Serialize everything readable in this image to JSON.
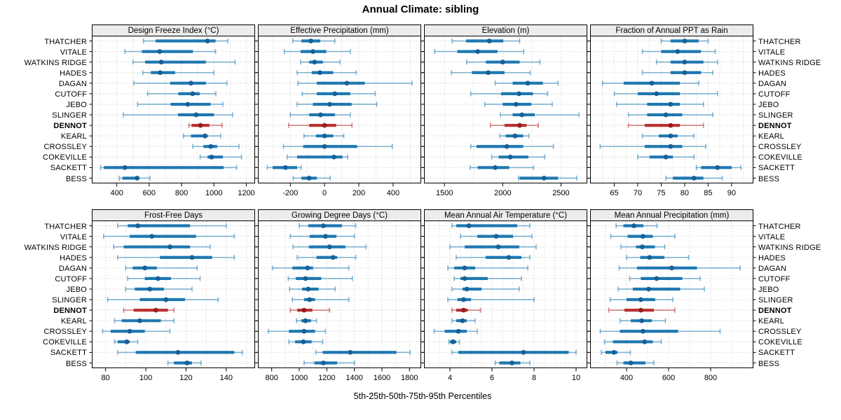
{
  "title": "Annual Climate: sibling",
  "footer": "5th-25th-50th-75th-95th Percentiles",
  "colors": {
    "normal_bar": "#1e78b0",
    "normal_dot": "#176099",
    "normal_whisker": "rgba(30,120,176,0.55)",
    "highlight_bar": "#b83232",
    "highlight_dot": "#961e1e",
    "highlight_whisker": "rgba(184,50,50,0.6)",
    "strip_bg": "#ececec",
    "grid": "#c8c8c8",
    "border": "#000000"
  },
  "chart_data": {
    "type": "dotplot-percentiles",
    "layout": "2 rows x 4 cols",
    "percentiles": [
      5,
      25,
      50,
      75,
      95
    ],
    "legend_note": "5th-25th-50th-75th-95th Percentiles",
    "highlight_station": "DENNOT",
    "stations": [
      "THATCHER",
      "VITALE",
      "WATKINS RIDGE",
      "HADES",
      "DAGAN",
      "CUTOFF",
      "JEBO",
      "SLINGER",
      "DENNOT",
      "KEARL",
      "CROSSLEY",
      "COKEVILLE",
      "SACKETT",
      "BESS"
    ],
    "panels": [
      {
        "title": "Design Freeze Index (°C)",
        "xlim": [
          250,
          1250
        ],
        "ticks": [
          400,
          600,
          800,
          1000,
          1200
        ],
        "grid_start": 300,
        "grid_step": 100,
        "values": {
          "THATCHER": [
            565,
            640,
            960,
            1010,
            1085
          ],
          "VITALE": [
            450,
            555,
            665,
            870,
            1010
          ],
          "WATKINS RIDGE": [
            500,
            575,
            675,
            950,
            1130
          ],
          "HADES": [
            560,
            610,
            668,
            760,
            1000
          ],
          "DAGAN": [
            505,
            730,
            858,
            950,
            1080
          ],
          "CUTOFF": [
            590,
            780,
            868,
            912,
            1012
          ],
          "JEBO": [
            528,
            732,
            838,
            980,
            1055
          ],
          "SLINGER": [
            440,
            778,
            890,
            1000,
            1115
          ],
          "DENNOT": [
            845,
            862,
            917,
            972,
            1050
          ],
          "KEARL": [
            812,
            858,
            945,
            962,
            1042
          ],
          "CROSSLEY": [
            870,
            935,
            980,
            1020,
            1155
          ],
          "COKEVILLE": [
            915,
            960,
            985,
            1055,
            1170
          ],
          "SACKETT": [
            300,
            320,
            450,
            1060,
            1140
          ],
          "BESS": [
            415,
            435,
            525,
            540,
            605
          ]
        }
      },
      {
        "title": "Effective Precipitation (mm)",
        "xlim": [
          -385,
          560
        ],
        "ticks": [
          -200,
          0,
          200,
          400
        ],
        "grid_start": -300,
        "grid_step": 100,
        "values": {
          "THATCHER": [
            -185,
            -135,
            -80,
            -25,
            60
          ],
          "VITALE": [
            -235,
            -140,
            -68,
            10,
            150
          ],
          "WATKINS RIDGE": [
            -140,
            -90,
            -58,
            -10,
            90
          ],
          "HADES": [
            -160,
            -75,
            -27,
            50,
            185
          ],
          "DAGAN": [
            -155,
            -45,
            130,
            235,
            510
          ],
          "CUTOFF": [
            -130,
            -45,
            60,
            150,
            295
          ],
          "JEBO": [
            -160,
            -68,
            30,
            158,
            305
          ],
          "SLINGER": [
            -200,
            -90,
            -23,
            60,
            150
          ],
          "DENNOT": [
            -210,
            -90,
            0,
            68,
            160
          ],
          "KEARL": [
            -120,
            -50,
            0,
            50,
            112
          ],
          "CROSSLEY": [
            -240,
            -125,
            0,
            190,
            395
          ],
          "COKEVILLE": [
            -218,
            -160,
            55,
            105,
            135
          ],
          "SACKETT": [
            -335,
            -303,
            -228,
            -160,
            -137
          ],
          "BESS": [
            -183,
            -135,
            -90,
            -45,
            33
          ]
        }
      },
      {
        "title": "Elevation (m)",
        "xlim": [
          1330,
          2720
        ],
        "ticks": [
          1500,
          2000,
          2500
        ],
        "grid_start": 1500,
        "grid_step": 250,
        "values": {
          "THATCHER": [
            1565,
            1685,
            1885,
            2005,
            2145
          ],
          "VITALE": [
            1415,
            1610,
            1785,
            1955,
            2180
          ],
          "WATKINS RIDGE": [
            1690,
            1855,
            2000,
            2145,
            2320
          ],
          "HADES": [
            1560,
            1735,
            1875,
            2015,
            2235
          ],
          "DAGAN": [
            1935,
            2085,
            2215,
            2345,
            2475
          ],
          "CUTOFF": [
            1725,
            1985,
            2140,
            2260,
            2385
          ],
          "JEBO": [
            1845,
            2000,
            2115,
            2245,
            2425
          ],
          "SLINGER": [
            1980,
            2085,
            2165,
            2275,
            2655
          ],
          "DENNOT": [
            1895,
            2015,
            2145,
            2205,
            2305
          ],
          "KEARL": [
            1975,
            2025,
            2105,
            2175,
            2225
          ],
          "CROSSLEY": [
            1725,
            1775,
            2035,
            2175,
            2435
          ],
          "COKEVILLE": [
            1905,
            1965,
            2065,
            2220,
            2360
          ],
          "SACKETT": [
            1720,
            1785,
            1935,
            2055,
            2265
          ],
          "BESS": [
            2135,
            2145,
            2355,
            2475,
            2635
          ]
        }
      },
      {
        "title": "Fraction of Annual PPT as Rain",
        "xlim": [
          60,
          94.5
        ],
        "ticks": [
          65,
          70,
          75,
          80,
          85,
          90
        ],
        "grid_start": 62.5,
        "grid_step": 2.5,
        "values": {
          "THATCHER": [
            75,
            77,
            80,
            83,
            85
          ],
          "VITALE": [
            71,
            75,
            78.5,
            83.5,
            86.5
          ],
          "WATKINS RIDGE": [
            74,
            77,
            80,
            84,
            87
          ],
          "HADES": [
            71,
            77,
            80,
            83.5,
            86
          ],
          "DAGAN": [
            62.5,
            67,
            73,
            79,
            83
          ],
          "CUTOFF": [
            65,
            70,
            74,
            79,
            87
          ],
          "JEBO": [
            65.5,
            72,
            77,
            79,
            84
          ],
          "SLINGER": [
            68,
            72,
            76,
            79.5,
            86
          ],
          "DENNOT": [
            68,
            71.5,
            77,
            79,
            84
          ],
          "KEARL": [
            71,
            74.5,
            77,
            78.5,
            82
          ],
          "CROSSLEY": [
            62,
            71.5,
            77,
            79.5,
            84.5
          ],
          "COKEVILLE": [
            70,
            72.5,
            76,
            77.5,
            82
          ],
          "SACKETT": [
            82.5,
            83.5,
            87,
            90,
            92
          ],
          "BESS": [
            76,
            77.5,
            82,
            84,
            88
          ]
        }
      },
      {
        "title": "Frost-Free Days",
        "xlim": [
          73.5,
          154
        ],
        "ticks": [
          80,
          100,
          120,
          140
        ],
        "grid_start": 80,
        "grid_step": 10,
        "values": {
          "THATCHER": [
            86,
            91,
            96,
            122,
            140
          ],
          "VITALE": [
            79,
            92,
            103,
            125,
            144
          ],
          "WATKINS RIDGE": [
            84,
            89,
            112,
            122,
            132
          ],
          "HADES": [
            86,
            107,
            123,
            133,
            144
          ],
          "DAGAN": [
            90,
            93.5,
            99.5,
            105.5,
            125.5
          ],
          "CUTOFF": [
            91,
            99.5,
            106,
            112.5,
            127
          ],
          "JEBO": [
            90,
            94.5,
            102,
            109,
            123
          ],
          "SLINGER": [
            81,
            97,
            110,
            119.5,
            136
          ],
          "DENNOT": [
            89,
            94,
            105,
            111,
            114
          ],
          "KEARL": [
            84.5,
            88,
            97,
            107.5,
            114
          ],
          "CROSSLEY": [
            78.5,
            82.5,
            92,
            99.5,
            112
          ],
          "COKEVILLE": [
            84.5,
            86,
            90.5,
            92,
            96
          ],
          "SACKETT": [
            86,
            95,
            116,
            144,
            148
          ],
          "BESS": [
            111,
            114,
            120.5,
            123,
            127.5
          ]
        }
      },
      {
        "title": "Growing Degree Days (°C)",
        "xlim": [
          705,
          1880
        ],
        "ticks": [
          800,
          1000,
          1200,
          1400,
          1600,
          1800
        ],
        "grid_start": 800,
        "grid_step": 100,
        "values": {
          "THATCHER": [
            1000,
            1065,
            1175,
            1310,
            1410
          ],
          "VITALE": [
            935,
            1075,
            1190,
            1270,
            1400
          ],
          "WATKINS RIDGE": [
            955,
            1070,
            1220,
            1335,
            1485
          ],
          "HADES": [
            985,
            1125,
            1245,
            1275,
            1410
          ],
          "DAGAN": [
            805,
            950,
            1060,
            1100,
            1360
          ],
          "CUTOFF": [
            920,
            975,
            1045,
            1160,
            1385
          ],
          "JEBO": [
            930,
            1020,
            1065,
            1140,
            1260
          ],
          "SLINGER": [
            950,
            1035,
            1075,
            1115,
            1360
          ],
          "DENNOT": [
            935,
            985,
            1035,
            1095,
            1220
          ],
          "KEARL": [
            980,
            1015,
            1045,
            1085,
            1125
          ],
          "CROSSLEY": [
            775,
            925,
            1035,
            1115,
            1190
          ],
          "COKEVILLE": [
            925,
            970,
            1030,
            1090,
            1170
          ],
          "SACKETT": [
            1120,
            1170,
            1370,
            1705,
            1805
          ],
          "BESS": [
            1035,
            1110,
            1175,
            1275,
            1400
          ]
        }
      },
      {
        "title": "Mean Annual Air Temperature (°C)",
        "xlim": [
          2.8,
          10.5
        ],
        "ticks": [
          4,
          6,
          8,
          10
        ],
        "grid_start": 3,
        "grid_step": 0.5,
        "values": {
          "THATCHER": [
            4.1,
            4.3,
            4.9,
            7.2,
            7.8
          ],
          "VITALE": [
            4.5,
            5.3,
            6.2,
            7.0,
            7.9
          ],
          "WATKINS RIDGE": [
            4.0,
            4.7,
            6.3,
            7.3,
            8.1
          ],
          "HADES": [
            4.3,
            5.7,
            6.8,
            7.4,
            7.8
          ],
          "DAGAN": [
            3.9,
            4.2,
            4.7,
            5.2,
            7.7
          ],
          "CUTOFF": [
            4.2,
            4.5,
            4.7,
            5.8,
            7.4
          ],
          "JEBO": [
            4.1,
            4.6,
            4.8,
            5.5,
            7.3
          ],
          "SLINGER": [
            3.9,
            4.35,
            4.65,
            5.0,
            8.0
          ],
          "DENNOT": [
            4.1,
            4.3,
            4.65,
            4.85,
            5.45
          ],
          "KEARL": [
            4.1,
            4.3,
            4.6,
            4.8,
            5.2
          ],
          "CROSSLEY": [
            3.25,
            3.75,
            4.4,
            4.8,
            5.3
          ],
          "COKEVILLE": [
            3.95,
            4.0,
            4.15,
            4.3,
            4.45
          ],
          "SACKETT": [
            4.1,
            4.4,
            7.5,
            9.65,
            10.0
          ],
          "BESS": [
            6.15,
            6.35,
            6.95,
            7.35,
            7.8
          ]
        }
      },
      {
        "title": "Mean Annual Precipitation (mm)",
        "xlim": [
          230,
          1000
        ],
        "ticks": [
          400,
          600,
          800
        ],
        "grid_start": 300,
        "grid_step": 100,
        "values": {
          "THATCHER": [
            350,
            385,
            435,
            480,
            545
          ],
          "VITALE": [
            325,
            405,
            478,
            525,
            630
          ],
          "WATKINS RIDGE": [
            373,
            445,
            475,
            535,
            582
          ],
          "HADES": [
            400,
            465,
            510,
            580,
            695
          ],
          "DAGAN": [
            365,
            450,
            615,
            735,
            940
          ],
          "CUTOFF": [
            415,
            468,
            543,
            665,
            750
          ],
          "JEBO": [
            360,
            430,
            505,
            655,
            770
          ],
          "SLINGER": [
            322,
            400,
            468,
            536,
            620
          ],
          "DENNOT": [
            315,
            390,
            468,
            530,
            630
          ],
          "KEARL": [
            370,
            420,
            472,
            520,
            585
          ],
          "CROSSLEY": [
            275,
            368,
            478,
            645,
            845
          ],
          "COKEVILLE": [
            295,
            335,
            486,
            525,
            565
          ],
          "SACKETT": [
            280,
            300,
            340,
            357,
            418
          ],
          "BESS": [
            355,
            385,
            420,
            490,
            530
          ]
        }
      }
    ]
  }
}
